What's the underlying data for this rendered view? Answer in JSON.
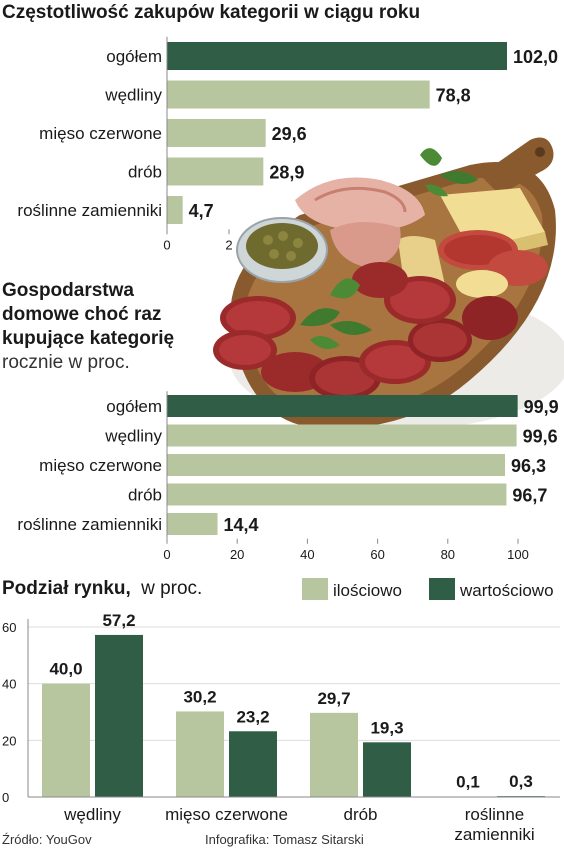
{
  "colors": {
    "light": "#b8c6a0",
    "dark": "#2f5d45",
    "axis": "#888888",
    "text": "#1a1a1a"
  },
  "chart_data": [
    {
      "type": "bar",
      "orientation": "horizontal",
      "title": "Częstotliwość zakupów kategorii w ciągu roku",
      "categories": [
        "ogółem",
        "wędliny",
        "mięso czerwone",
        "drób",
        "roślinne zamienniki"
      ],
      "values": [
        102.0,
        78.8,
        29.6,
        28.9,
        4.7
      ],
      "value_labels": [
        "102,0",
        "78,8",
        "29,6",
        "28,9",
        "4,7"
      ],
      "highlight": [
        true,
        false,
        false,
        false,
        false
      ],
      "xlim": [
        0,
        102
      ],
      "xticks": [
        "0",
        "2"
      ]
    },
    {
      "type": "bar",
      "orientation": "horizontal",
      "title_lines": [
        "Gospodarstwa",
        "domowe choć raz",
        "kupujące kategorię"
      ],
      "subtitle": "rocznie w proc.",
      "categories": [
        "ogółem",
        "wędliny",
        "mięso czerwone",
        "drób",
        "roślinne zamienniki"
      ],
      "values": [
        99.9,
        99.6,
        96.3,
        96.7,
        14.4
      ],
      "value_labels": [
        "99,9",
        "99,6",
        "96,3",
        "96,7",
        "14,4"
      ],
      "highlight": [
        true,
        false,
        false,
        false,
        false
      ],
      "xlim": [
        0,
        100
      ],
      "xticks": [
        0,
        20,
        40,
        60,
        80,
        100
      ]
    },
    {
      "type": "bar",
      "title": "Podział rynku,",
      "title_unit": "w proc.",
      "categories": [
        "wędliny",
        "mięso czerwone",
        "drób",
        "roślinne zamienniki"
      ],
      "category_lines": [
        [
          "wędliny"
        ],
        [
          "mięso czerwone"
        ],
        [
          "drób"
        ],
        [
          "roślinne",
          "zamienniki"
        ]
      ],
      "series": [
        {
          "name": "ilościowo",
          "values": [
            40.0,
            30.2,
            29.7,
            0.1
          ],
          "labels": [
            "40,0",
            "30,2",
            "29,7",
            "0,1"
          ]
        },
        {
          "name": "wartościowo",
          "values": [
            57.2,
            23.2,
            19.3,
            0.3
          ],
          "labels": [
            "57,2",
            "23,2",
            "19,3",
            "0,3"
          ]
        }
      ],
      "ylim": [
        0,
        60
      ],
      "yticks": [
        0,
        20,
        40,
        60
      ],
      "legend_position": "top-right"
    }
  ],
  "footer": {
    "source": "Źródło: YouGov",
    "credit": "Infografika: Tomasz Sitarski"
  }
}
